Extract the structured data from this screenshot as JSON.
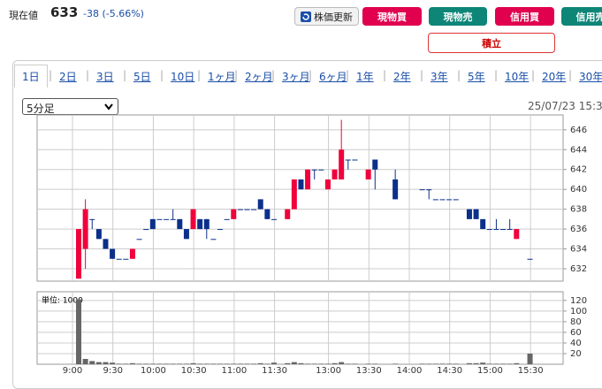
{
  "header": {
    "label": "現在値",
    "price": 633,
    "change": "-38 (-5.66%)"
  },
  "buttons": [
    "株価更新",
    "現物買",
    "現物売",
    "信用買",
    "信用売",
    "積立"
  ],
  "tabs": [
    "1日",
    "2日",
    "3日",
    "5日",
    "10日",
    "1ヶ月",
    "2ヶ月",
    "3ヶ月",
    "6ヶ月",
    "1年",
    "2年",
    "3年",
    "5年",
    "10年",
    "20年",
    "30年"
  ],
  "controls": {
    "interval": "5分足",
    "datetime": "25/07/23 15:3"
  },
  "chart_data": {
    "type": "candlestick",
    "grid": true,
    "up_color": "#f0003c",
    "down_color": "#0c2f8a",
    "volume_color": "#666666",
    "volume_unit": "単位: 1000",
    "categories": [
      "9:00",
      null,
      null,
      null,
      null,
      null,
      "9:30",
      null,
      null,
      null,
      null,
      null,
      "10:00",
      null,
      null,
      null,
      null,
      null,
      "10:30",
      null,
      null,
      null,
      null,
      null,
      "11:00",
      null,
      null,
      null,
      null,
      null,
      "11:30",
      null,
      null,
      null,
      null,
      null,
      null,
      null,
      "13:00",
      null,
      null,
      null,
      null,
      null,
      "13:30",
      null,
      null,
      null,
      null,
      null,
      "14:00",
      null,
      null,
      null,
      null,
      null,
      "14:30",
      null,
      null,
      null,
      null,
      null,
      "15:00",
      null,
      null,
      null,
      null,
      null,
      "15:30"
    ],
    "open": [
      631,
      634,
      637,
      636,
      635,
      634,
      633,
      633,
      633,
      635,
      636,
      637,
      637,
      637,
      637,
      637,
      636,
      636,
      637,
      637,
      635,
      636,
      637,
      637,
      638,
      638,
      638,
      639,
      638,
      637,
      null,
      637,
      638,
      641,
      640,
      642,
      642,
      640,
      641,
      641,
      643,
      643,
      null,
      641,
      643,
      null,
      null,
      641,
      null,
      null,
      null,
      640,
      640,
      639,
      639,
      639,
      639,
      null,
      638,
      638,
      637,
      636,
      636,
      636,
      636,
      635,
      null,
      633,
      null
    ],
    "high": [
      636,
      639,
      637,
      636,
      635,
      634,
      633,
      633,
      634,
      635,
      636,
      637,
      637,
      637,
      638,
      637,
      636,
      638,
      637,
      637,
      635,
      636,
      637,
      638,
      638,
      638,
      638,
      639,
      638,
      637,
      null,
      638,
      641,
      641,
      642,
      642,
      642,
      641,
      642,
      647,
      643,
      643,
      null,
      642,
      643,
      null,
      null,
      642,
      null,
      null,
      null,
      640,
      640,
      639,
      639,
      639,
      639,
      null,
      638,
      638,
      637,
      636,
      637,
      636,
      637,
      636,
      null,
      633,
      null
    ],
    "low": [
      631,
      632,
      636,
      635,
      634,
      633,
      633,
      633,
      633,
      635,
      636,
      636,
      637,
      637,
      637,
      636,
      635,
      636,
      636,
      635,
      635,
      636,
      637,
      637,
      638,
      638,
      638,
      638,
      637,
      637,
      null,
      637,
      638,
      640,
      640,
      641,
      642,
      640,
      641,
      641,
      642,
      643,
      null,
      641,
      640,
      null,
      null,
      639,
      null,
      null,
      null,
      640,
      639,
      639,
      639,
      639,
      639,
      null,
      637,
      637,
      636,
      636,
      636,
      636,
      636,
      635,
      null,
      633,
      null
    ],
    "close": [
      636,
      638,
      637,
      635,
      634,
      633,
      633,
      633,
      634,
      635,
      636,
      636,
      637,
      637,
      637,
      636,
      635,
      638,
      636,
      636,
      635,
      636,
      637,
      638,
      638,
      638,
      638,
      638,
      637,
      637,
      null,
      638,
      641,
      640,
      642,
      642,
      642,
      641,
      642,
      644,
      643,
      643,
      null,
      642,
      642,
      null,
      null,
      639,
      null,
      null,
      null,
      640,
      640,
      639,
      639,
      639,
      639,
      null,
      637,
      637,
      636,
      636,
      636,
      636,
      636,
      636,
      null,
      633,
      null
    ],
    "volume": [
      122,
      10,
      6,
      4,
      4,
      3,
      1,
      1,
      2,
      1,
      1,
      1,
      1,
      1,
      1,
      1,
      1,
      2,
      1,
      1,
      1,
      1,
      1,
      1,
      1,
      1,
      1,
      2,
      1,
      3,
      null,
      2,
      4,
      2,
      1,
      1,
      1,
      1,
      2,
      4,
      1,
      1,
      null,
      1,
      1,
      null,
      null,
      1,
      null,
      null,
      null,
      1,
      1,
      1,
      1,
      1,
      1,
      null,
      2,
      2,
      3,
      1,
      1,
      1,
      1,
      2,
      null,
      20,
      null
    ],
    "ylim": [
      630.75,
      647.5
    ],
    "yticks": [
      632,
      634,
      636,
      638,
      640,
      642,
      644,
      646
    ],
    "y2lim": [
      0,
      133
    ],
    "y2ticks": [
      20,
      40,
      60,
      80,
      100,
      120
    ]
  }
}
